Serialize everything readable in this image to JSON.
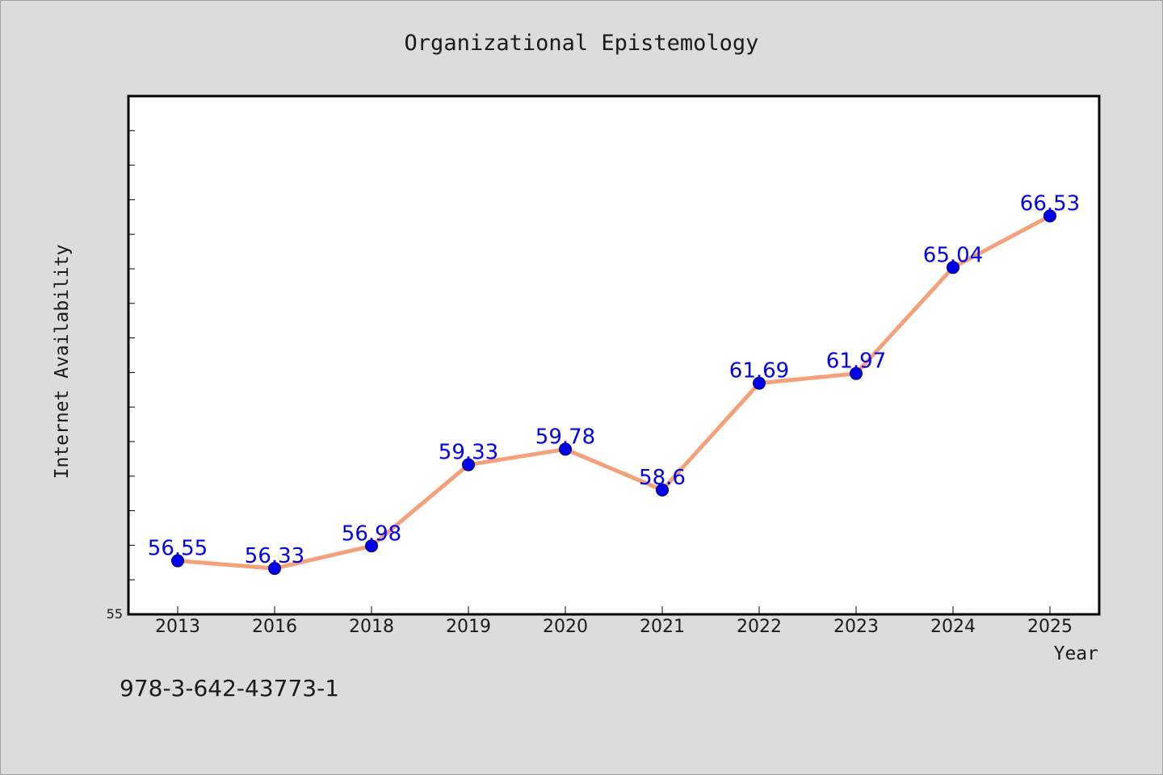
{
  "chart_data": {
    "type": "line",
    "title": "Organizational Epistemology",
    "xlabel": "Year",
    "ylabel": "Internet Availability",
    "categories": [
      "2013",
      "2016",
      "2018",
      "2019",
      "2020",
      "2021",
      "2022",
      "2023",
      "2024",
      "2025"
    ],
    "series": [
      {
        "values": [
          56.55,
          56.33,
          56.98,
          59.33,
          59.78,
          58.6,
          61.69,
          61.97,
          65.04,
          66.53
        ],
        "labels": [
          "56.55",
          "56.33",
          "56.98",
          "59.33",
          "59.78",
          "58.6",
          "61.69",
          "61.97",
          "65.04",
          "66.53"
        ],
        "line_color": "#f4a07a",
        "marker_color": "#0000ee"
      }
    ],
    "ylim": [
      55,
      70
    ],
    "y_ticks_labeled": [
      "55"
    ],
    "grid": false,
    "plot_background": "#ffffff",
    "page_background": "#dcdcdc"
  },
  "footer": {
    "isbn": "978-3-642-43773-1"
  }
}
